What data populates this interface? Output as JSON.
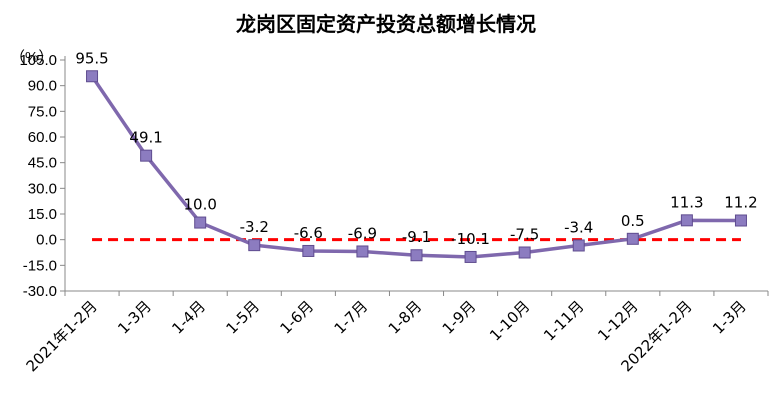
{
  "colors": {
    "series": "#7f68ad",
    "marker_fill": "#8c7cc0",
    "marker_stroke": "#5f4c8f",
    "reference": "#ff0000",
    "axis": "#888888"
  },
  "chart_data": {
    "type": "line",
    "title": "龙岗区固定资产投资总额增长情况",
    "ylabel": "（%）",
    "xlabel": "",
    "ylim": [
      -30,
      105
    ],
    "yticks": [
      "105.0",
      "90.0",
      "75.0",
      "60.0",
      "45.0",
      "30.0",
      "15.0",
      "0.0",
      "-15.0",
      "-30.0"
    ],
    "ytick_values": [
      105,
      90,
      75,
      60,
      45,
      30,
      15,
      0,
      -15,
      -30
    ],
    "categories": [
      "2021年1-2月",
      "1-3月",
      "1-4月",
      "1-5月",
      "1-6月",
      "1-7月",
      "1-8月",
      "1-9月",
      "1-10月",
      "1-11月",
      "1-12月",
      "2022年1-2月",
      "1-3月"
    ],
    "series": [
      {
        "values": [
          95.5,
          49.1,
          10.0,
          -3.2,
          -6.6,
          -6.9,
          -9.1,
          -10.1,
          -7.5,
          -3.4,
          0.5,
          11.3,
          11.2
        ],
        "labels": [
          "95.5",
          "49.1",
          "10.0",
          "-3.2",
          "-6.6",
          "-6.9",
          "-9.1",
          "-10.1",
          "-7.5",
          "-3.4",
          "0.5",
          "11.3",
          "11.2"
        ]
      }
    ],
    "reference_line": {
      "value": 0,
      "style": "dashed"
    },
    "grid": false,
    "legend": "none"
  }
}
